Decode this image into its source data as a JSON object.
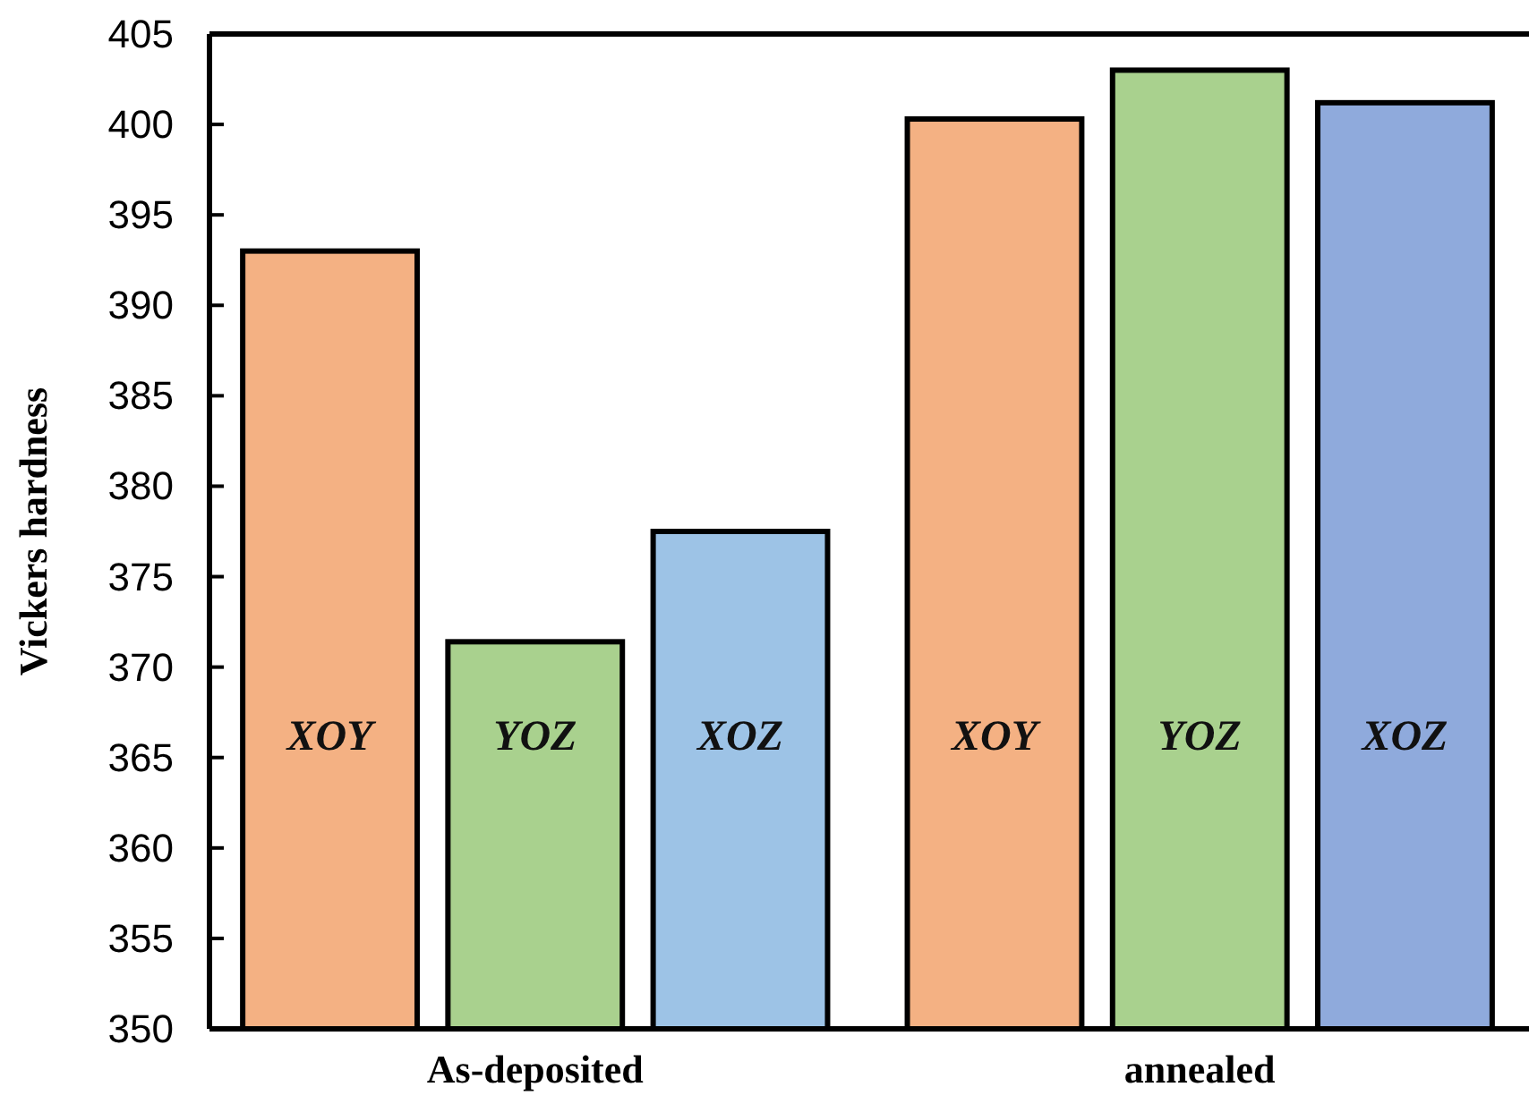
{
  "chart_data": {
    "type": "bar",
    "ylabel": "Vickers hardness",
    "categories": [
      "As-deposited",
      "annealed"
    ],
    "series": [
      {
        "name": "XOY",
        "color": "#f4b183",
        "values": [
          393,
          400.3
        ]
      },
      {
        "name": "YOZ",
        "color": "#a9d18e",
        "values": [
          371.4,
          403
        ]
      },
      {
        "name": "XOZ",
        "colors": [
          "#9dc3e6",
          "#8faadc"
        ],
        "values": [
          377.5,
          401.2
        ]
      }
    ],
    "ylim": [
      350,
      405
    ],
    "yticks": [
      350,
      355,
      360,
      365,
      370,
      375,
      380,
      385,
      390,
      395,
      400,
      405
    ],
    "legend": false,
    "grid": false
  }
}
